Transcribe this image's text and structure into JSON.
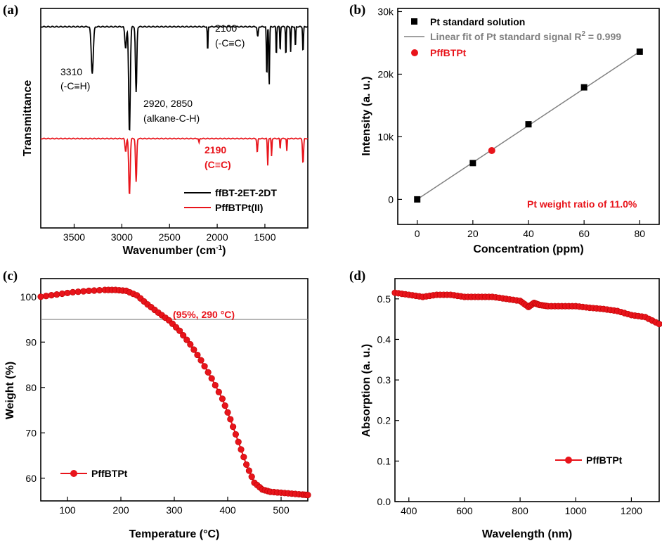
{
  "colors": {
    "black": "#000000",
    "red": "#e8141b",
    "gray": "#808080"
  },
  "chart_data": [
    {
      "panel": "(a)",
      "type": "line",
      "xlabel": "Wavenumber (cm",
      "xlabel_sup": "-1",
      "xlabel_end": ")",
      "ylabel": "Transmittance",
      "xlim": [
        3850,
        1050
      ],
      "x_reversed": true,
      "xticks": [
        3500,
        3000,
        2500,
        2000,
        1500
      ],
      "series": [
        {
          "name": "ffBT-2ET-2DT",
          "color": "#000000",
          "baseline": 0.92,
          "peaks": [
            {
              "x": 3310,
              "depth": 0.55,
              "w": 15
            },
            {
              "x": 2960,
              "depth": 0.25,
              "w": 12
            },
            {
              "x": 2920,
              "depth": 1.25,
              "w": 12
            },
            {
              "x": 2850,
              "depth": 0.78,
              "w": 10
            },
            {
              "x": 2100,
              "depth": 0.3,
              "w": 5
            },
            {
              "x": 1575,
              "depth": 0.12,
              "w": 8
            },
            {
              "x": 1480,
              "depth": 0.6,
              "w": 6
            },
            {
              "x": 1455,
              "depth": 0.7,
              "w": 6
            },
            {
              "x": 1380,
              "depth": 0.35,
              "w": 5
            },
            {
              "x": 1340,
              "depth": 0.3,
              "w": 5
            },
            {
              "x": 1280,
              "depth": 0.35,
              "w": 5
            },
            {
              "x": 1230,
              "depth": 0.3,
              "w": 5
            },
            {
              "x": 1180,
              "depth": 0.25,
              "w": 5
            },
            {
              "x": 1100,
              "depth": 0.3,
              "w": 6
            }
          ]
        },
        {
          "name": "PffBTPt(II)",
          "color": "#e8141b",
          "baseline": 0.0,
          "peaks": [
            {
              "x": 2960,
              "depth": 0.18,
              "w": 10
            },
            {
              "x": 2920,
              "depth": 0.8,
              "w": 11
            },
            {
              "x": 2850,
              "depth": 0.62,
              "w": 9
            },
            {
              "x": 2190,
              "depth": 0.06,
              "w": 6
            },
            {
              "x": 1580,
              "depth": 0.2,
              "w": 7
            },
            {
              "x": 1470,
              "depth": 0.38,
              "w": 6
            },
            {
              "x": 1430,
              "depth": 0.25,
              "w": 5
            },
            {
              "x": 1340,
              "depth": 0.15,
              "w": 5
            },
            {
              "x": 1270,
              "depth": 0.18,
              "w": 5
            },
            {
              "x": 1100,
              "depth": 0.35,
              "w": 8
            }
          ]
        }
      ],
      "annotations": [
        {
          "text1": "3310",
          "text2": "(-C≡H)",
          "color": "#000000"
        },
        {
          "text1": "2920, 2850",
          "text2": "(alkane-C-H)",
          "color": "#000000"
        },
        {
          "text1": "2100",
          "text2": "(-C≡C)",
          "color": "#000000"
        },
        {
          "text1": "2190",
          "text2": "(C≡C)",
          "color": "#e8141b"
        }
      ]
    },
    {
      "panel": "(b)",
      "type": "scatter",
      "xlabel": "Concentration (ppm)",
      "ylabel": "Intensity (a. u.)",
      "xlim": [
        -7,
        87
      ],
      "ylim": [
        -4000,
        30500
      ],
      "xticks": [
        0,
        20,
        40,
        60,
        80
      ],
      "yticks": [
        0,
        10000,
        20000,
        30000
      ],
      "ytick_labels": [
        "0",
        "10k",
        "20k",
        "30k"
      ],
      "series": [
        {
          "name": "Pt standard solution",
          "color": "#000000",
          "x": [
            0,
            20,
            40,
            60,
            80
          ],
          "y": [
            0,
            5800,
            12000,
            17900,
            23600
          ]
        },
        {
          "name": "PffBTPt",
          "color": "#e8141b",
          "x": [
            26.8
          ],
          "y": [
            7800
          ]
        }
      ],
      "fit": {
        "name": "Linear fit of Pt standard signal R",
        "sup": "2",
        "tail": " = 0.999",
        "color": "#808080",
        "x": [
          0,
          80
        ],
        "y": [
          0,
          23600
        ]
      },
      "note": "Pt weight ratio of 11.0%"
    },
    {
      "panel": "(c)",
      "type": "line",
      "xlabel": "Temperature (°C)",
      "ylabel": "Weight (%)",
      "xlim": [
        50,
        550
      ],
      "ylim": [
        55,
        104
      ],
      "xticks": [
        100,
        200,
        300,
        400,
        500
      ],
      "yticks": [
        60,
        70,
        80,
        90,
        100
      ],
      "hline": 95,
      "annotation": "(95%, 290 °C)",
      "series": [
        {
          "name": "PffBTPt",
          "color": "#e8141b",
          "x": [
            50,
            80,
            110,
            140,
            170,
            190,
            210,
            230,
            250,
            270,
            290,
            310,
            330,
            350,
            370,
            390,
            405,
            420,
            435,
            450,
            465,
            480,
            500,
            520,
            540,
            550
          ],
          "y": [
            100,
            100.5,
            101,
            101.3,
            101.5,
            101.5,
            101.3,
            100.3,
            98.3,
            96.5,
            94.8,
            92.5,
            89.5,
            86,
            82,
            77.5,
            73,
            68,
            63,
            59,
            57.5,
            57,
            56.8,
            56.6,
            56.4,
            56.3
          ]
        }
      ]
    },
    {
      "panel": "(d)",
      "type": "line",
      "xlabel": "Wavelength (nm)",
      "ylabel": "Absorption (a. u.)",
      "xlim": [
        350,
        1300
      ],
      "ylim": [
        0.0,
        0.55
      ],
      "xticks": [
        400,
        600,
        800,
        1000,
        1200
      ],
      "yticks": [
        0.0,
        0.1,
        0.2,
        0.3,
        0.4,
        0.5
      ],
      "ytick_labels": [
        "0.0",
        "0.1",
        "0.2",
        "0.3",
        "0.4",
        "0.5"
      ],
      "series": [
        {
          "name": "PffBTPt",
          "color": "#e8141b",
          "x": [
            350,
            400,
            450,
            500,
            550,
            600,
            650,
            700,
            750,
            800,
            830,
            850,
            870,
            900,
            950,
            1000,
            1050,
            1100,
            1150,
            1200,
            1250,
            1300
          ],
          "y": [
            0.515,
            0.51,
            0.505,
            0.51,
            0.51,
            0.505,
            0.505,
            0.505,
            0.5,
            0.495,
            0.48,
            0.49,
            0.485,
            0.482,
            0.482,
            0.482,
            0.478,
            0.475,
            0.47,
            0.46,
            0.455,
            0.438
          ]
        }
      ]
    }
  ]
}
